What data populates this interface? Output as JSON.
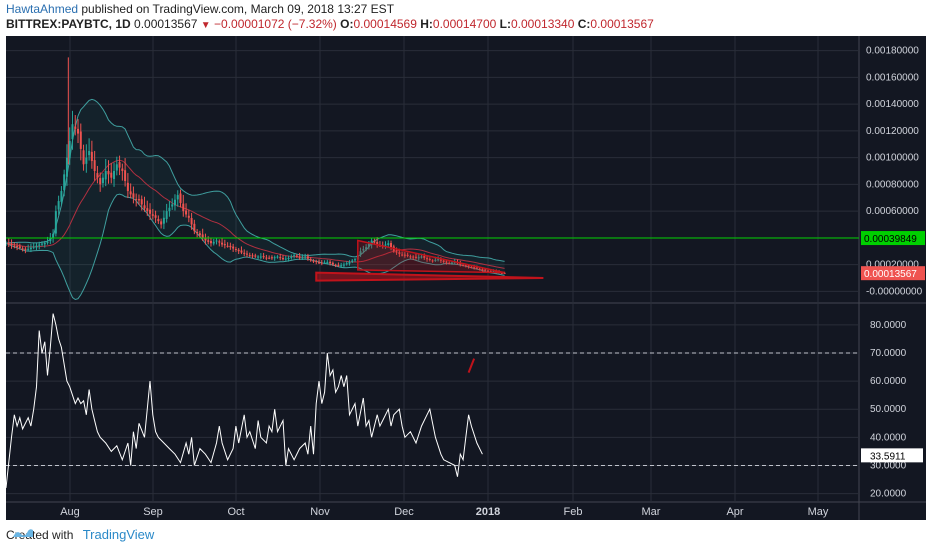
{
  "header": {
    "author": "HawtaAhmed",
    "published": " published on TradingView.com, March 09, 2018 13:27 EST"
  },
  "ohlc": {
    "symbol": "BITTREX:PAYBTC, 1D",
    "last": "0.00013567",
    "arrow": "▼",
    "change": "−0.00001072 (−7.32%)",
    "o_label": "O:",
    "o": "0.00014569",
    "h_label": "H:",
    "h": "0.00014700",
    "l_label": "L:",
    "l": "0.00013340",
    "c_label": "C:",
    "c": "0.00013567"
  },
  "footer": {
    "created_with": "Created with",
    "brand": "TradingView"
  },
  "colors": {
    "background": "#131722",
    "grid": "#2a2e39",
    "up": "#26a69a",
    "down": "#ef5350",
    "bollinger": "#3f9e9e",
    "sma": "#b03040",
    "horizontal_line": "#00d000",
    "triangle": "#c0131b",
    "rsi": "#ffffff"
  },
  "chart_data": [
    {
      "type": "candlestick",
      "xlabels": [
        "Aug",
        "Sep",
        "Oct",
        "Nov",
        "Dec",
        "2018",
        "Feb",
        "Mar",
        "Apr",
        "May"
      ],
      "y_ticks": [
        "0.00180000",
        "0.00160000",
        "0.00140000",
        "0.00120000",
        "0.00100000",
        "0.00080000",
        "0.00060000",
        "0.00040000",
        "0.00020000",
        "-0.00000000"
      ],
      "ylim": [
        -5e-05,
        0.00185
      ],
      "horizontal_line": {
        "value": 0.00039849,
        "label": "0.00039849"
      },
      "last_price": {
        "value": 0.00013567,
        "label": "0.00013567"
      },
      "close_series": [
        [
          0,
          0.00036
        ],
        [
          7,
          0.00031
        ],
        [
          12,
          0.00035
        ],
        [
          15,
          0.00037
        ],
        [
          17,
          0.00043
        ],
        [
          18,
          0.0006
        ],
        [
          20,
          0.00075
        ],
        [
          22,
          0.001
        ],
        [
          24,
          0.00125
        ],
        [
          26,
          0.00118
        ],
        [
          28,
          0.00095
        ],
        [
          30,
          0.00105
        ],
        [
          32,
          0.0009
        ],
        [
          34,
          0.0008
        ],
        [
          36,
          0.0009
        ],
        [
          38,
          0.00085
        ],
        [
          40,
          0.00095
        ],
        [
          42,
          0.0009
        ],
        [
          44,
          0.00075
        ],
        [
          46,
          0.0007
        ],
        [
          48,
          0.00068
        ],
        [
          50,
          0.00062
        ],
        [
          52,
          0.00058
        ],
        [
          54,
          0.00055
        ],
        [
          56,
          0.0005
        ],
        [
          58,
          0.0006
        ],
        [
          60,
          0.00065
        ],
        [
          62,
          0.00072
        ],
        [
          64,
          0.0006
        ],
        [
          66,
          0.00055
        ],
        [
          68,
          0.00045
        ],
        [
          70,
          0.00042
        ],
        [
          72,
          0.00038
        ],
        [
          74,
          0.00036
        ],
        [
          76,
          0.00038
        ],
        [
          78,
          0.00035
        ],
        [
          80,
          0.00034
        ],
        [
          82,
          0.00032
        ],
        [
          84,
          0.0003
        ],
        [
          86,
          0.00028
        ],
        [
          88,
          0.00027
        ],
        [
          90,
          0.00026
        ],
        [
          92,
          0.00026
        ],
        [
          94,
          0.00025
        ],
        [
          96,
          0.00025
        ],
        [
          98,
          0.00026
        ],
        [
          100,
          0.00024
        ],
        [
          102,
          0.00025
        ],
        [
          104,
          0.00027
        ],
        [
          106,
          0.00025
        ],
        [
          108,
          0.00026
        ],
        [
          110,
          0.00023
        ],
        [
          112,
          0.00022
        ],
        [
          114,
          0.00021
        ],
        [
          116,
          0.00022
        ],
        [
          118,
          0.0002
        ],
        [
          120,
          0.00019
        ],
        [
          122,
          0.0002
        ],
        [
          124,
          0.00022
        ],
        [
          126,
          0.00024
        ],
        [
          128,
          0.0003
        ],
        [
          130,
          0.00033
        ],
        [
          132,
          0.00038
        ],
        [
          134,
          0.00035
        ],
        [
          136,
          0.00034
        ],
        [
          138,
          0.00036
        ],
        [
          140,
          0.0003
        ],
        [
          142,
          0.00028
        ],
        [
          144,
          0.00027
        ],
        [
          146,
          0.00026
        ],
        [
          148,
          0.00025
        ],
        [
          150,
          0.00026
        ],
        [
          152,
          0.00024
        ],
        [
          154,
          0.00023
        ],
        [
          156,
          0.00024
        ],
        [
          158,
          0.00022
        ],
        [
          160,
          0.00021
        ],
        [
          162,
          0.00022
        ],
        [
          164,
          0.0002
        ],
        [
          166,
          0.00019
        ],
        [
          168,
          0.00018
        ],
        [
          170,
          0.00017
        ],
        [
          172,
          0.00016
        ],
        [
          174,
          0.00015
        ],
        [
          176,
          0.00015
        ],
        [
          178,
          0.00014
        ],
        [
          180,
          0.00013567
        ]
      ]
    },
    {
      "type": "line",
      "y_ticks": [
        "80.0000",
        "70.0000",
        "60.0000",
        "50.0000",
        "40.0000",
        "30.0000",
        "20.0000"
      ],
      "ylim": [
        17,
        86
      ],
      "levels": [
        70,
        30
      ],
      "last_value": {
        "value": 33.5911,
        "label": "33.5911"
      },
      "series": [
        [
          0,
          22
        ],
        [
          2,
          40
        ],
        [
          3,
          48
        ],
        [
          4,
          44
        ],
        [
          5,
          47
        ],
        [
          6,
          43
        ],
        [
          8,
          47
        ],
        [
          9,
          44
        ],
        [
          10,
          50
        ],
        [
          11,
          58
        ],
        [
          12,
          78
        ],
        [
          13,
          70
        ],
        [
          14,
          74
        ],
        [
          15,
          62
        ],
        [
          16,
          72
        ],
        [
          17,
          84
        ],
        [
          18,
          80
        ],
        [
          19,
          75
        ],
        [
          20,
          72
        ],
        [
          22,
          60
        ],
        [
          23,
          58
        ],
        [
          24,
          55
        ],
        [
          25,
          52
        ],
        [
          26,
          54
        ],
        [
          27,
          52
        ],
        [
          28,
          53
        ],
        [
          29,
          48
        ],
        [
          30,
          57
        ],
        [
          31,
          50
        ],
        [
          32,
          46
        ],
        [
          33,
          42
        ],
        [
          34,
          40
        ],
        [
          36,
          38
        ],
        [
          38,
          35
        ],
        [
          40,
          37
        ],
        [
          42,
          32
        ],
        [
          44,
          38
        ],
        [
          45,
          30
        ],
        [
          46,
          42
        ],
        [
          47,
          36
        ],
        [
          48,
          45
        ],
        [
          50,
          40
        ],
        [
          52,
          60
        ],
        [
          53,
          48
        ],
        [
          54,
          42
        ],
        [
          55,
          40
        ],
        [
          57,
          38
        ],
        [
          59,
          36
        ],
        [
          61,
          34
        ],
        [
          63,
          31
        ],
        [
          65,
          38
        ],
        [
          66,
          34
        ],
        [
          67,
          40
        ],
        [
          68,
          30
        ],
        [
          70,
          36
        ],
        [
          72,
          34
        ],
        [
          74,
          31
        ],
        [
          76,
          38
        ],
        [
          77,
          44
        ],
        [
          78,
          38
        ],
        [
          80,
          32
        ],
        [
          82,
          36
        ],
        [
          83,
          44
        ],
        [
          84,
          38
        ],
        [
          86,
          48
        ],
        [
          87,
          40
        ],
        [
          88,
          42
        ],
        [
          90,
          36
        ],
        [
          91,
          46
        ],
        [
          92,
          40
        ],
        [
          94,
          38
        ],
        [
          95,
          44
        ],
        [
          96,
          42
        ],
        [
          97,
          50
        ],
        [
          98,
          42
        ],
        [
          100,
          46
        ],
        [
          101,
          30
        ],
        [
          102,
          36
        ],
        [
          104,
          32
        ],
        [
          106,
          36
        ],
        [
          108,
          38
        ],
        [
          109,
          34
        ],
        [
          110,
          44
        ],
        [
          111,
          34
        ],
        [
          112,
          52
        ],
        [
          113,
          60
        ],
        [
          114,
          52
        ],
        [
          115,
          56
        ],
        [
          116,
          70
        ],
        [
          117,
          62
        ],
        [
          118,
          64
        ],
        [
          119,
          56
        ],
        [
          120,
          58
        ],
        [
          121,
          62
        ],
        [
          122,
          58
        ],
        [
          123,
          62
        ],
        [
          124,
          48
        ],
        [
          126,
          52
        ],
        [
          127,
          44
        ],
        [
          129,
          54
        ],
        [
          130,
          44
        ],
        [
          131,
          46
        ],
        [
          132,
          40
        ],
        [
          134,
          48
        ],
        [
          135,
          44
        ],
        [
          136,
          46
        ],
        [
          138,
          50
        ],
        [
          139,
          44
        ],
        [
          140,
          48
        ],
        [
          142,
          50
        ],
        [
          143,
          44
        ],
        [
          144,
          40
        ],
        [
          146,
          42
        ],
        [
          148,
          38
        ],
        [
          150,
          44
        ],
        [
          152,
          48
        ],
        [
          153,
          50
        ],
        [
          154,
          45
        ],
        [
          155,
          40
        ],
        [
          157,
          34
        ],
        [
          158,
          32
        ],
        [
          160,
          31
        ],
        [
          162,
          30
        ],
        [
          163,
          26
        ],
        [
          164,
          34
        ],
        [
          165,
          32
        ],
        [
          166,
          40
        ],
        [
          167,
          48
        ],
        [
          168,
          44
        ],
        [
          170,
          38
        ],
        [
          172,
          34
        ]
      ]
    }
  ]
}
